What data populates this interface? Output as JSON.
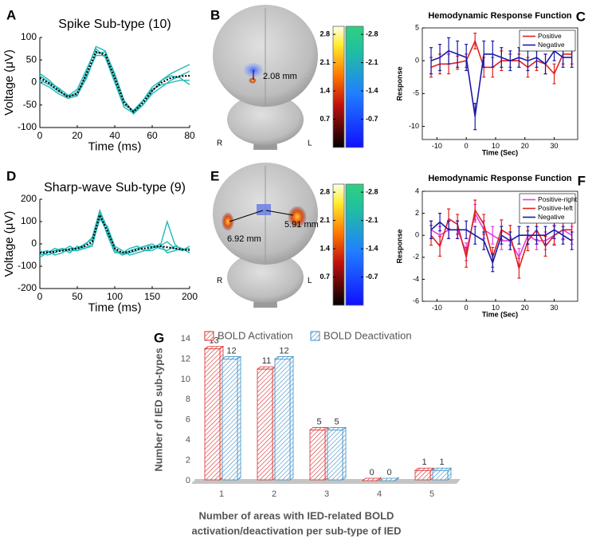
{
  "chart_data": [
    {
      "type": "line",
      "letter": "A",
      "title": "Spike Sub-type (10)",
      "xlabel": "Time (ms)",
      "ylabel": "Voltage (μV)",
      "x": [
        0,
        5,
        10,
        15,
        20,
        25,
        30,
        35,
        40,
        45,
        50,
        55,
        60,
        65,
        70,
        75,
        80
      ],
      "xlim": [
        0,
        80
      ],
      "xticks": [
        0,
        20,
        40,
        60,
        80
      ],
      "ylim": [
        -100,
        100
      ],
      "yticks": [
        -100,
        -50,
        0,
        50,
        100
      ],
      "series": [
        {
          "color": "#22b8b8",
          "values": [
            20,
            5,
            -15,
            -35,
            -30,
            25,
            80,
            70,
            15,
            -40,
            -70,
            -50,
            -20,
            5,
            20,
            30,
            40
          ]
        },
        {
          "color": "#22b8b8",
          "values": [
            0,
            -10,
            -25,
            -35,
            -20,
            15,
            60,
            60,
            5,
            -50,
            -62,
            -40,
            -15,
            -5,
            0,
            5,
            5
          ]
        },
        {
          "color": "#22b8b8",
          "values": [
            15,
            0,
            -12,
            -28,
            -28,
            10,
            65,
            68,
            20,
            -40,
            -65,
            -50,
            -25,
            -10,
            5,
            15,
            25
          ]
        },
        {
          "color": "#22b8b8",
          "values": [
            5,
            -5,
            -20,
            -30,
            -15,
            30,
            75,
            55,
            0,
            -55,
            -68,
            -40,
            -10,
            5,
            15,
            10,
            -5
          ]
        },
        {
          "color": "#000000",
          "dash": "dotted",
          "values": [
            10,
            -2,
            -18,
            -32,
            -25,
            20,
            68,
            62,
            10,
            -45,
            -65,
            -45,
            -18,
            0,
            10,
            14,
            15
          ]
        }
      ]
    },
    {
      "type": "line",
      "letter": "C",
      "title": "Hemodynamic Response Function",
      "xlabel": "Time (Sec)",
      "ylabel": "Response",
      "x": [
        -12,
        -9,
        -6,
        -3,
        0,
        3,
        6,
        9,
        12,
        15,
        18,
        21,
        24,
        27,
        30,
        33,
        36
      ],
      "xlim": [
        -15,
        38
      ],
      "xticks": [
        -10,
        0,
        10,
        20,
        30
      ],
      "ylim": [
        -12,
        5
      ],
      "yticks": [
        5,
        0,
        -5,
        -10
      ],
      "legend": "upper right",
      "series": [
        {
          "name": "Positive",
          "color": "#e02020",
          "values": [
            -1,
            -0.5,
            -0.5,
            -0.3,
            0,
            3,
            -1,
            -1,
            0,
            0,
            0,
            -1,
            0,
            -0.5,
            -2,
            1,
            1
          ],
          "errors": [
            1.5,
            1.5,
            1.5,
            1,
            1,
            1.2,
            1.5,
            1.5,
            1.5,
            1,
            1,
            1.5,
            1.5,
            1.5,
            1.5,
            1.5,
            1.5
          ]
        },
        {
          "name": "Negative",
          "color": "#1a1aa8",
          "values": [
            0,
            0.5,
            1.5,
            1,
            0.5,
            -8.5,
            1,
            1,
            0.5,
            0,
            0.5,
            0,
            0.5,
            -0.5,
            1.5,
            0.5,
            0.5
          ],
          "errors": [
            2,
            2,
            2,
            2,
            2,
            2,
            2,
            2,
            1.5,
            1.5,
            1.5,
            1.5,
            1.5,
            1.5,
            1.5,
            1.5,
            1.5
          ]
        }
      ]
    },
    {
      "type": "line",
      "letter": "D",
      "title": "Sharp-wave Sub-type (9)",
      "xlabel": "Time (ms)",
      "ylabel": "Voltage (μV)",
      "x": [
        0,
        10,
        20,
        30,
        40,
        50,
        60,
        70,
        80,
        90,
        100,
        110,
        120,
        130,
        140,
        150,
        160,
        170,
        180,
        190,
        200
      ],
      "xlim": [
        0,
        200
      ],
      "xticks": [
        0,
        50,
        100,
        150,
        200
      ],
      "ylim": [
        -200,
        200
      ],
      "yticks": [
        -200,
        -100,
        0,
        100,
        200
      ],
      "series": [
        {
          "color": "#22b8b8",
          "values": [
            -50,
            -40,
            -20,
            -30,
            -10,
            -30,
            -5,
            30,
            150,
            70,
            -30,
            -50,
            -30,
            -20,
            -10,
            0,
            -20,
            100,
            0,
            -30,
            -20
          ]
        },
        {
          "color": "#22b8b8",
          "values": [
            -30,
            -50,
            -40,
            -20,
            -40,
            -10,
            -20,
            0,
            110,
            80,
            -10,
            -30,
            -50,
            -40,
            -30,
            -20,
            0,
            -40,
            -30,
            -20,
            -40
          ]
        },
        {
          "color": "#22b8b8",
          "values": [
            -40,
            -30,
            -50,
            -40,
            -20,
            -20,
            0,
            20,
            140,
            40,
            -40,
            -40,
            -20,
            -10,
            -30,
            -30,
            -10,
            10,
            -20,
            -30,
            -10
          ]
        },
        {
          "color": "#22b8b8",
          "values": [
            -60,
            -40,
            -30,
            -20,
            -30,
            -30,
            -20,
            -10,
            120,
            50,
            -20,
            -50,
            -40,
            -30,
            -10,
            -10,
            -20,
            -30,
            -10,
            -20,
            -40
          ]
        },
        {
          "color": "#000000",
          "dash": "dotted",
          "values": [
            -40,
            -38,
            -35,
            -30,
            -25,
            -20,
            -10,
            10,
            130,
            60,
            -20,
            -40,
            -35,
            -25,
            -20,
            -15,
            -10,
            -15,
            -20,
            -25,
            -28
          ]
        }
      ]
    },
    {
      "type": "line",
      "letter": "F",
      "title": "Hemodynamic Response Function",
      "xlabel": "Time (Sec)",
      "ylabel": "Response",
      "x": [
        -12,
        -9,
        -6,
        -3,
        0,
        3,
        6,
        9,
        12,
        15,
        18,
        21,
        24,
        27,
        30,
        33,
        36
      ],
      "xlim": [
        -15,
        38
      ],
      "xticks": [
        -10,
        0,
        10,
        20,
        30
      ],
      "ylim": [
        -6,
        4
      ],
      "yticks": [
        4,
        2,
        0,
        -2,
        -4,
        -6
      ],
      "legend": "upper right",
      "series": [
        {
          "name": "Positive-right",
          "color": "#e040e0",
          "values": [
            0.5,
            0,
            0.5,
            0.5,
            -1.5,
            2,
            0.5,
            0,
            -0.5,
            -0.5,
            -2,
            0,
            -0.5,
            -0.5,
            0,
            0.5,
            0
          ],
          "errors": [
            0.8,
            0.8,
            0.8,
            0.8,
            0.8,
            0.8,
            0.8,
            0.8,
            0.8,
            0.8,
            0.8,
            0.8,
            0.8,
            0.8,
            0.8,
            0.8,
            0.8
          ]
        },
        {
          "name": "Positive-left",
          "color": "#e02020",
          "values": [
            0,
            -1,
            1.5,
            1,
            -2,
            2.3,
            1,
            -2,
            0.5,
            0,
            -3,
            -0.5,
            0.5,
            -1,
            0,
            0.5,
            0.5
          ],
          "errors": [
            0.9,
            0.9,
            0.9,
            0.9,
            0.9,
            0.9,
            0.9,
            0.9,
            0.9,
            0.9,
            0.9,
            0.9,
            0.9,
            0.9,
            0.9,
            0.9,
            0.9
          ]
        },
        {
          "name": "Negative",
          "color": "#1a1aa8",
          "values": [
            0.5,
            1.2,
            0.5,
            0.5,
            0.5,
            0,
            -0.5,
            -2.5,
            0,
            -0.5,
            0,
            0,
            0,
            0,
            0.5,
            0,
            -0.5
          ],
          "errors": [
            0.8,
            0.8,
            0.8,
            0.8,
            0.8,
            0.8,
            0.8,
            0.8,
            0.8,
            0.8,
            0.8,
            0.8,
            0.8,
            0.8,
            0.8,
            0.8,
            0.8
          ]
        }
      ]
    },
    {
      "type": "bar",
      "letter": "G",
      "ylabel": "Number of IED sub-types",
      "xlabel": [
        "Number of areas with IED-related BOLD",
        "activation/deactivation per sub-type of IED"
      ],
      "categories": [
        "1",
        "2",
        "3",
        "4",
        "5"
      ],
      "ylim": [
        0,
        14
      ],
      "yticks": [
        0,
        2,
        4,
        6,
        8,
        10,
        12,
        14
      ],
      "series": [
        {
          "name": "BOLD Activation",
          "color": "#d92b2b",
          "values": [
            13,
            11,
            5,
            0,
            1
          ]
        },
        {
          "name": "BOLD Deactivation",
          "color": "#3a8ec4",
          "values": [
            12,
            12,
            5,
            0,
            1
          ]
        }
      ]
    }
  ],
  "brains": [
    {
      "letter": "B",
      "distances": [
        "2.08 mm"
      ],
      "sides": [
        "R",
        "L"
      ],
      "colorbar_lim": [
        0,
        3
      ],
      "colorbar_ticks": [
        2.8,
        2.1,
        1.4,
        0.7
      ],
      "colorbar_neg_lim": [
        0,
        -3
      ],
      "colorbar_neg_ticks": [
        -2.8,
        -2.1,
        -1.4,
        -0.7
      ]
    },
    {
      "letter": "E",
      "distances": [
        "6.92 mm",
        "5.91 mm"
      ],
      "sides": [
        "R",
        "L"
      ],
      "colorbar_lim": [
        0,
        3
      ],
      "colorbar_ticks": [
        2.8,
        2.1,
        1.4,
        0.7
      ],
      "colorbar_neg_lim": [
        0,
        -3
      ],
      "colorbar_neg_ticks": [
        -2.8,
        -2.1,
        -1.4,
        -0.7
      ]
    }
  ]
}
